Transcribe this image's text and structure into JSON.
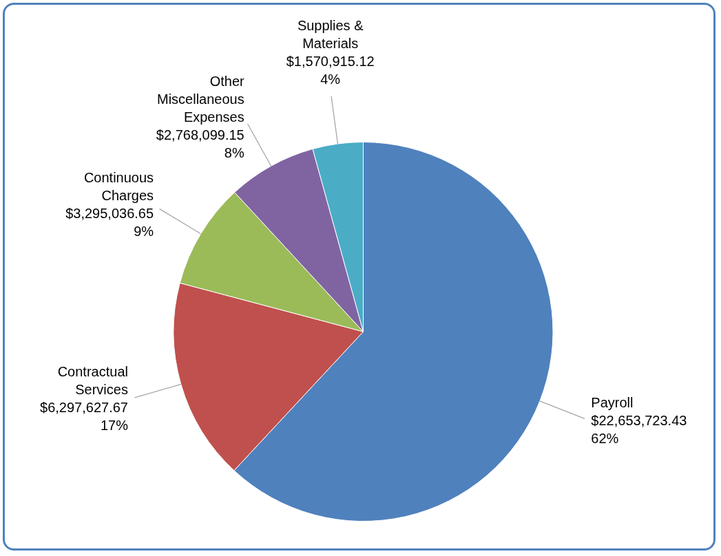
{
  "chart_data": {
    "type": "pie",
    "categories": [
      "Payroll",
      "Contractual Services",
      "Continuous Charges",
      "Other Miscellaneous Expenses",
      "Supplies & Materials"
    ],
    "values": [
      22653723.43,
      6297627.67,
      3295036.65,
      2768099.15,
      1570915.12
    ],
    "value_labels": [
      "$22,653,723.43\n62%",
      "$6,297,627.67\n17%",
      "$3,295,036.65\n9%",
      "$2,768,099.15\n8%",
      "$1,570,915.12\n4%"
    ],
    "colors": [
      "#4f81bd",
      "#c0504d",
      "#9bbb59",
      "#8064a2",
      "#4bacc6"
    ],
    "legend": false
  }
}
